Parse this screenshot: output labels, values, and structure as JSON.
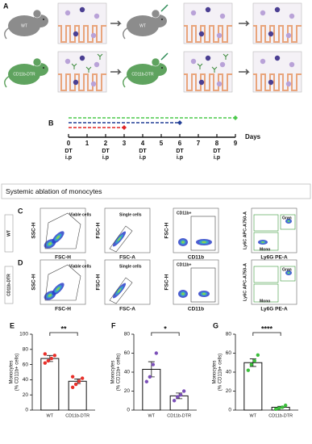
{
  "panel_a": {
    "letter": "A",
    "rows": [
      {
        "label": "WT"
      },
      {
        "label": "CD11b-DTR"
      }
    ]
  },
  "panel_b": {
    "letter": "B",
    "xlabel": "Days",
    "ticks": [
      0,
      1,
      2,
      3,
      4,
      5,
      6,
      7,
      8,
      9
    ],
    "dt_labels": [
      {
        "day": 0,
        "lines": [
          "DT",
          "i.p"
        ]
      },
      {
        "day": 2,
        "lines": [
          "DT",
          "i.p"
        ]
      },
      {
        "day": 4,
        "lines": [
          "DT",
          "i.p"
        ]
      },
      {
        "day": 6,
        "lines": [
          "DT",
          "i.p"
        ]
      },
      {
        "day": 8,
        "lines": [
          "DT",
          "i.p"
        ]
      }
    ],
    "regimens": [
      {
        "end": 9,
        "color": "#4cc94c"
      },
      {
        "end": 6,
        "color": "#223f96"
      },
      {
        "end": 3,
        "color": "#e02424"
      }
    ]
  },
  "section_title": "Systemic ablation of monocytes",
  "flow": {
    "rows": [
      {
        "panel": "C",
        "label": "WT"
      },
      {
        "panel": "D",
        "label": "CD11b-DTR"
      }
    ],
    "plots": [
      {
        "ylabel": "SSC-H",
        "xlabel": "FSC-H",
        "gates": [
          "Viable cells"
        ]
      },
      {
        "ylabel": "FSC-H",
        "xlabel": "FSC-A",
        "gates": [
          "Single cells"
        ]
      },
      {
        "ylabel": "FSC-H",
        "xlabel": "CD11b",
        "gates": [
          "CD11b+"
        ]
      },
      {
        "ylabel": "Ly6C APC-A750-A",
        "xlabel": "Ly6G PE-A",
        "gates": [
          "Gran",
          "Mono"
        ]
      }
    ]
  },
  "chart_data": [
    {
      "type": "bar",
      "panel": "E",
      "ylabel": [
        "Monocytes",
        "(% CD11b+ cells)"
      ],
      "categories": [
        "WT",
        "CD11b-DTR"
      ],
      "values": [
        68,
        38
      ],
      "errors": [
        4,
        3
      ],
      "points": [
        [
          62,
          65,
          68,
          72,
          74
        ],
        [
          30,
          34,
          38,
          42,
          44
        ]
      ],
      "point_color": "#e8302a",
      "significance": "**",
      "ylim": [
        0,
        100
      ],
      "yticks": [
        0,
        20,
        40,
        60,
        80,
        100
      ]
    },
    {
      "type": "bar",
      "panel": "F",
      "ylabel": [
        "Monocytes",
        "(% CD11b+ cells)"
      ],
      "categories": [
        "WT",
        "CD11b-DTR"
      ],
      "values": [
        43,
        15
      ],
      "errors": [
        8,
        3
      ],
      "points": [
        [
          30,
          35,
          48,
          60
        ],
        [
          10,
          14,
          16,
          20
        ]
      ],
      "point_color": "#7b4fb8",
      "significance": "*",
      "ylim": [
        0,
        80
      ],
      "yticks": [
        0,
        20,
        40,
        60,
        80
      ]
    },
    {
      "type": "bar",
      "panel": "G",
      "ylabel": [
        "Monocytes",
        "(% CD11b+ cells)"
      ],
      "categories": [
        "WT",
        "CD11b-DTR"
      ],
      "values": [
        50,
        3
      ],
      "errors": [
        4,
        1
      ],
      "points": [
        [
          42,
          48,
          52,
          58
        ],
        [
          1,
          2,
          3,
          5
        ]
      ],
      "point_color": "#3cbf3c",
      "significance": "****",
      "ylim": [
        0,
        80
      ],
      "yticks": [
        0,
        20,
        40,
        60,
        80
      ]
    }
  ]
}
